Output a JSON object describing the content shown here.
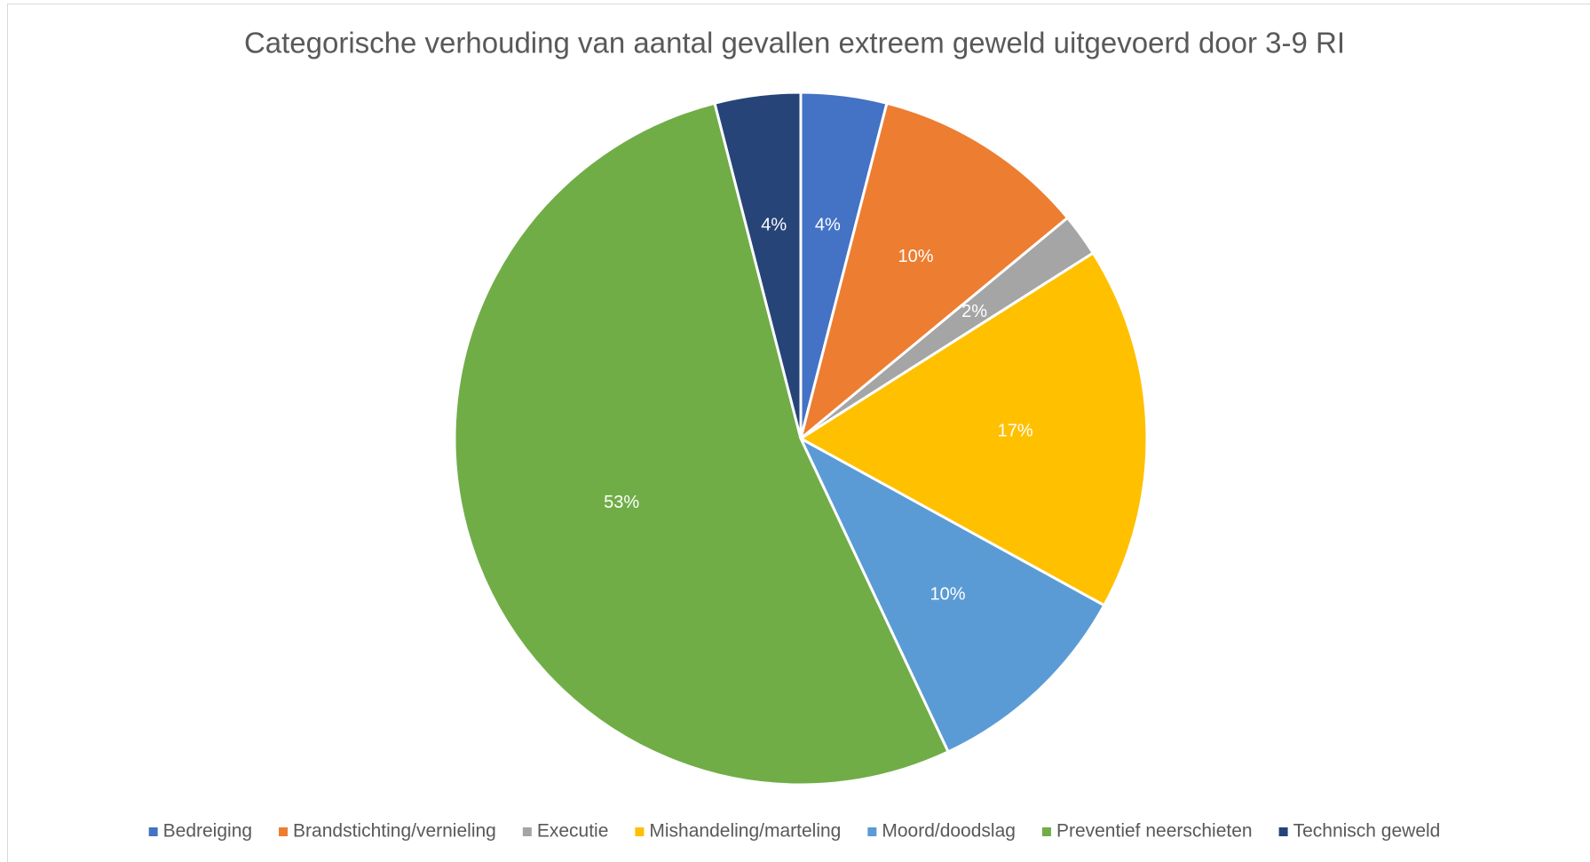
{
  "chart_data": {
    "type": "pie",
    "title": "Categorische verhouding van aantal gevallen extreem geweld uitgevoerd door 3-9 RI",
    "categories": [
      "Bedreiging",
      "Brandstichting/vernieling",
      "Executie",
      "Mishandeling/marteling",
      "Moord/doodslag",
      "Preventief neerschieten",
      "Technisch geweld"
    ],
    "values": [
      4,
      10,
      2,
      17,
      10,
      53,
      4
    ],
    "value_labels": [
      "4%",
      "10%",
      "2%",
      "17%",
      "10%",
      "53%",
      "4%"
    ],
    "colors": [
      "#4472c4",
      "#ed7d31",
      "#a5a5a5",
      "#ffc000",
      "#5b9bd5",
      "#70ad47",
      "#264478"
    ],
    "legend": "bottom"
  }
}
